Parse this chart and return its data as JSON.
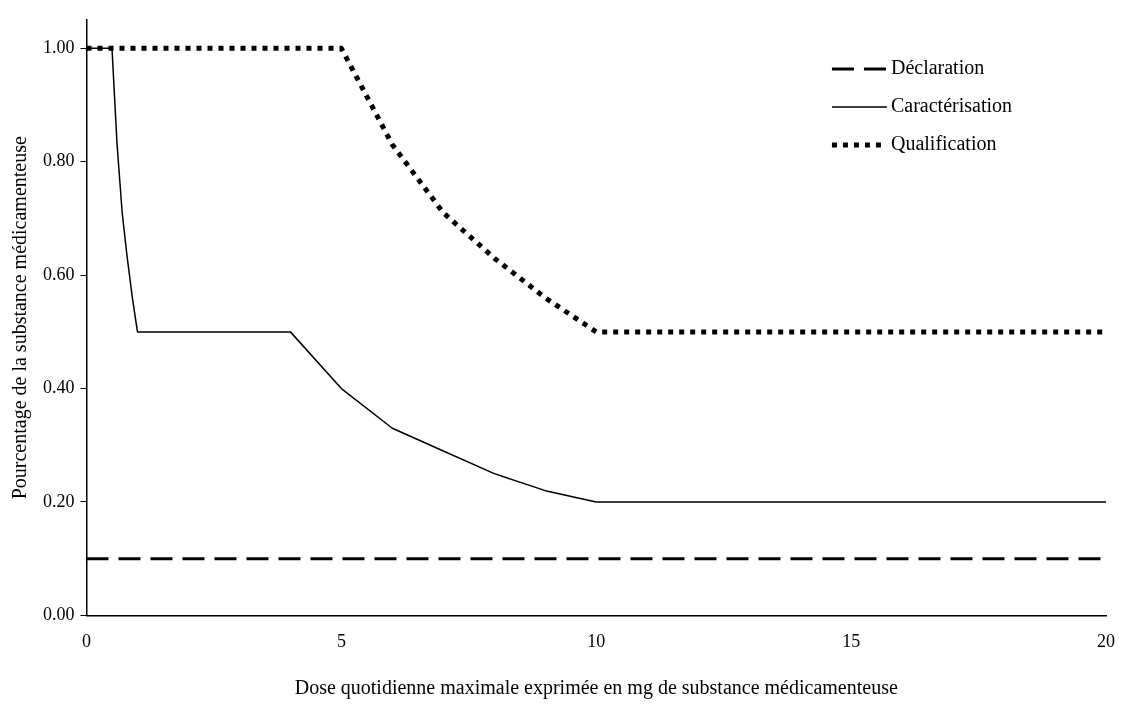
{
  "chart_data": {
    "type": "line",
    "xlabel": "Dose quotidienne maximale exprimée en mg de substance médicamenteuse",
    "ylabel": "Pourcentage de la substance médicamenteuse",
    "xlim": [
      0,
      20
    ],
    "xticks": [
      0,
      5,
      10,
      15,
      20
    ],
    "ylim": [
      0,
      1.05
    ],
    "yticks": [
      {
        "value": 0,
        "label": "0.00"
      },
      {
        "value": 0.2,
        "label": "0.20"
      },
      {
        "value": 0.4,
        "label": "0.40"
      },
      {
        "value": 0.6,
        "label": "0.60"
      },
      {
        "value": 0.8,
        "label": "0.80"
      },
      {
        "value": 1,
        "label": "1.00"
      }
    ],
    "grid": false,
    "legend": "top right",
    "marker": "none",
    "series": [
      {
        "name": "Déclaration",
        "color": "#000000",
        "line_style": "dashed",
        "x": [
          0,
          20
        ],
        "values": [
          0.1,
          0.1
        ]
      },
      {
        "name": "Caractérisation",
        "color": "#000000",
        "line_style": "solid",
        "x": [
          0,
          0.5,
          0.6,
          0.7,
          0.8,
          0.9,
          1,
          4,
          5,
          6,
          7,
          8,
          9,
          10,
          20
        ],
        "values": [
          1,
          1,
          0.83,
          0.71,
          0.63,
          0.56,
          0.5,
          0.5,
          0.4,
          0.33,
          0.29,
          0.25,
          0.22,
          0.2,
          0.2
        ]
      },
      {
        "name": "Qualification",
        "color": "#000000",
        "line_style": "dotted",
        "x": [
          0,
          5,
          6,
          7,
          8,
          9,
          10,
          20
        ],
        "values": [
          1,
          1,
          0.83,
          0.71,
          0.63,
          0.56,
          0.5,
          0.5
        ]
      }
    ]
  }
}
